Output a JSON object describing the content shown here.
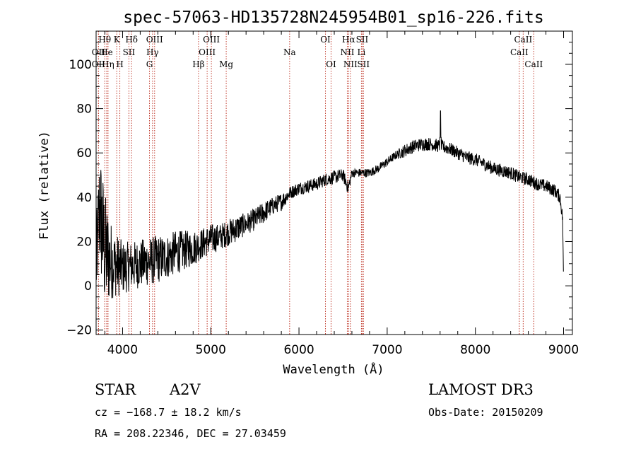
{
  "chart_data": {
    "type": "line",
    "title": "spec-57063-HD135728N245954B01_sp16-226.fits",
    "xlabel": "Wavelength (Å)",
    "ylabel": "Flux (relative)",
    "xlim": [
      3700,
      9100
    ],
    "ylim": [
      -22,
      115
    ],
    "xticks": [
      4000,
      5000,
      6000,
      7000,
      8000,
      9000
    ],
    "yticks": [
      -20,
      0,
      20,
      40,
      60,
      80,
      100
    ],
    "spectrum_shape": {
      "name": "Flux",
      "x": [
        3700,
        3740,
        3800,
        3850,
        3900,
        3950,
        4000,
        4100,
        4200,
        4300,
        4400,
        4500,
        4600,
        4700,
        4800,
        4900,
        5000,
        5100,
        5200,
        5300,
        5400,
        5500,
        5600,
        5700,
        5800,
        5900,
        6000,
        6100,
        6200,
        6300,
        6400,
        6500,
        6560,
        6600,
        6700,
        6800,
        6900,
        7000,
        7100,
        7200,
        7300,
        7400,
        7500,
        7600,
        7700,
        7800,
        7900,
        8000,
        8100,
        8200,
        8300,
        8400,
        8500,
        8600,
        8700,
        8800,
        8900,
        8960,
        8990,
        9000
      ],
      "y": [
        8,
        35,
        15,
        12,
        10,
        9,
        8,
        9,
        10,
        11,
        12,
        13,
        15,
        16,
        17,
        19,
        21,
        22,
        24,
        26,
        28,
        30,
        33,
        36,
        38,
        42,
        44,
        45,
        46,
        48,
        49,
        50,
        44,
        51,
        51,
        51,
        53,
        56,
        59,
        61,
        63,
        64,
        64,
        63,
        62,
        60,
        58,
        57,
        55,
        53,
        52,
        51,
        49,
        48,
        46,
        45,
        43,
        40,
        30,
        0
      ],
      "noise_amplitude": [
        18,
        30,
        28,
        20,
        15,
        14,
        12,
        11,
        11,
        11,
        11,
        10,
        10,
        9,
        8,
        7,
        7,
        6,
        6,
        6,
        5,
        5,
        5,
        4,
        4,
        3,
        3,
        3,
        3,
        3,
        3,
        3,
        3,
        2,
        2,
        2,
        2,
        2,
        2,
        3,
        3,
        3,
        3,
        3,
        3,
        3,
        3,
        3,
        3,
        3,
        3,
        3,
        3,
        3,
        3,
        3,
        3,
        3,
        3,
        0
      ]
    },
    "spikes": [
      {
        "x": 7605,
        "y": 79
      }
    ],
    "spectral_lines": [
      {
        "label": "OII",
        "x": 3727,
        "row": 2
      },
      {
        "label": "OII",
        "x": 3727,
        "row": 3
      },
      {
        "label": "Hθ",
        "x": 3798,
        "row": 1
      },
      {
        "label": "He",
        "x": 3820,
        "row": 2
      },
      {
        "label": "Hη",
        "x": 3835,
        "row": 3
      },
      {
        "label": "K",
        "x": 3934,
        "row": 1
      },
      {
        "label": "SII",
        "x": 4072,
        "row": 2
      },
      {
        "label": "H",
        "x": 3969,
        "row": 3
      },
      {
        "label": "Hδ",
        "x": 4102,
        "row": 1
      },
      {
        "label": "OIII",
        "x": 4363,
        "row": 1
      },
      {
        "label": "Hγ",
        "x": 4340,
        "row": 2
      },
      {
        "label": "G",
        "x": 4305,
        "row": 3
      },
      {
        "label": "Hβ",
        "x": 4861,
        "row": 3
      },
      {
        "label": "OIII",
        "x": 5007,
        "row": 1
      },
      {
        "label": "OIII",
        "x": 4959,
        "row": 2
      },
      {
        "label": "Mg",
        "x": 5175,
        "row": 3
      },
      {
        "label": "Na",
        "x": 5894,
        "row": 2
      },
      {
        "label": "OI",
        "x": 6300,
        "row": 1
      },
      {
        "label": "OI",
        "x": 6364,
        "row": 3
      },
      {
        "label": "Hα",
        "x": 6563,
        "row": 1
      },
      {
        "label": "NII",
        "x": 6548,
        "row": 2
      },
      {
        "label": "NII",
        "x": 6583,
        "row": 3
      },
      {
        "label": "SII",
        "x": 6716,
        "row": 1
      },
      {
        "label": "Li",
        "x": 6708,
        "row": 2
      },
      {
        "label": "SII",
        "x": 6731,
        "row": 3
      },
      {
        "label": "CaII",
        "x": 8542,
        "row": 1
      },
      {
        "label": "CaII",
        "x": 8498,
        "row": 2
      },
      {
        "label": "CaII",
        "x": 8662,
        "row": 3
      }
    ]
  },
  "info": {
    "class_label": "STAR",
    "subclass": "A2V",
    "survey": "LAMOST DR3",
    "cz": "cz = −168.7 ± 18.2 km/s",
    "obs_date": "Obs-Date: 20150209",
    "coords": "RA = 208.22346, DEC =  27.03459"
  },
  "colors": {
    "axis": "#000000",
    "spectrum": "#000000",
    "line_marker": "#c0392b"
  }
}
